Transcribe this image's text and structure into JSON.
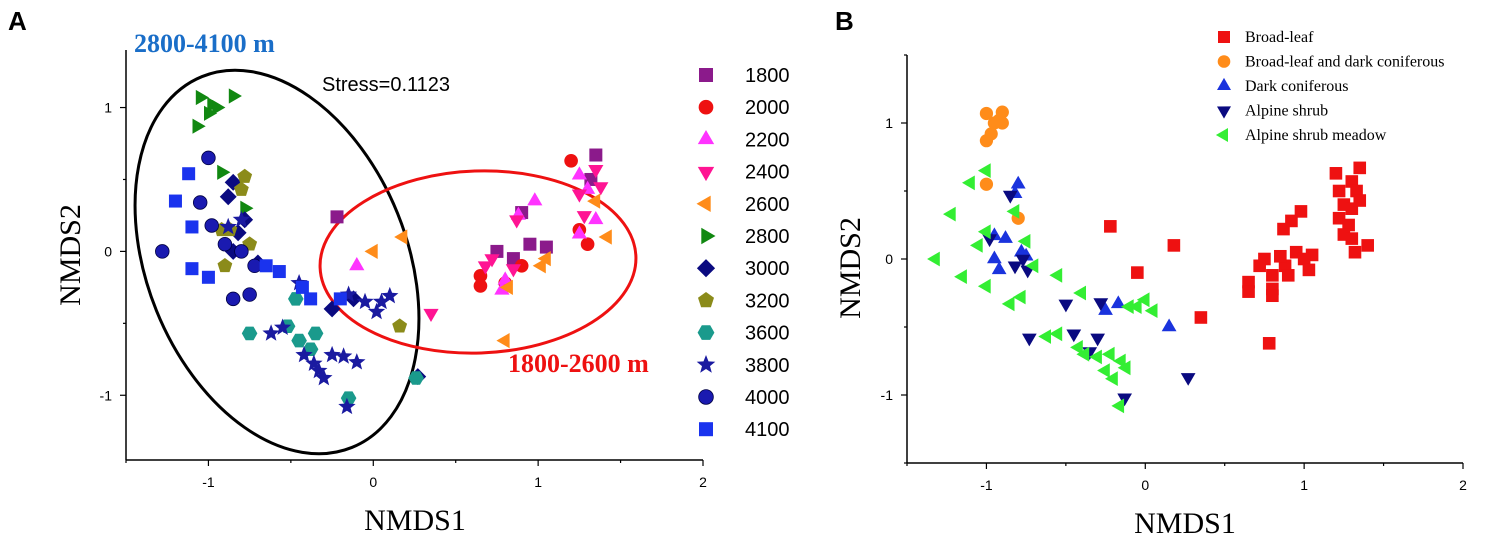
{
  "colors": {
    "1800": "#8b1a8b",
    "2000": "#ee1111",
    "2200": "#ff33ff",
    "2400": "#ff1493",
    "2600": "#ff8c1a",
    "2800": "#118811",
    "3000": "#0a0a80",
    "3200": "#8b8b1a",
    "3600": "#1a9a8c",
    "3800": "#1a1aa0",
    "4000": "#1a1ab0",
    "4100": "#1a33ee",
    "broad": "#ee1111",
    "broaddark": "#ff8c1a",
    "dark": "#1a33dd",
    "alpine": "#0a0a80",
    "meadow": "#33ee33",
    "ann_blue": "#1a6ec8",
    "ann_red": "#ee1111"
  },
  "chart_data": [
    {
      "panel": "A",
      "type": "scatter",
      "xlabel": "NMDS1",
      "ylabel": "NMDS2",
      "xlim": [
        -1.5,
        2.0
      ],
      "ylim": [
        -1.45,
        1.4
      ],
      "xticks": [
        -1,
        0,
        1,
        2
      ],
      "yticks": [
        -1,
        0,
        1
      ],
      "annotations": {
        "stress": "Stress=0.1123",
        "upper": "2800-4100 m",
        "lower": "1800-2600 m"
      },
      "series": [
        {
          "name": "1800",
          "marker": "square",
          "points": [
            [
              1.35,
              0.67
            ],
            [
              1.32,
              0.5
            ],
            [
              0.9,
              0.27
            ],
            [
              0.95,
              0.05
            ],
            [
              1.05,
              0.03
            ],
            [
              0.75,
              0.0
            ],
            [
              0.85,
              -0.05
            ],
            [
              -0.22,
              0.24
            ]
          ]
        },
        {
          "name": "2000",
          "marker": "circle",
          "points": [
            [
              1.2,
              0.63
            ],
            [
              1.25,
              0.15
            ],
            [
              1.3,
              0.05
            ],
            [
              0.65,
              -0.17
            ],
            [
              0.65,
              -0.24
            ],
            [
              0.8,
              -0.22
            ],
            [
              0.9,
              -0.1
            ]
          ]
        },
        {
          "name": "2200",
          "marker": "triangle-up",
          "points": [
            [
              1.25,
              0.53
            ],
            [
              1.3,
              0.43
            ],
            [
              0.98,
              0.35
            ],
            [
              0.88,
              0.25
            ],
            [
              1.25,
              0.12
            ],
            [
              1.35,
              0.22
            ],
            [
              0.8,
              -0.2
            ],
            [
              0.78,
              -0.27
            ],
            [
              -0.1,
              -0.1
            ]
          ]
        },
        {
          "name": "2400",
          "marker": "triangle-down",
          "points": [
            [
              1.35,
              0.57
            ],
            [
              1.38,
              0.45
            ],
            [
              1.25,
              0.4
            ],
            [
              1.28,
              0.25
            ],
            [
              0.87,
              0.22
            ],
            [
              0.72,
              -0.05
            ],
            [
              0.68,
              -0.1
            ],
            [
              0.85,
              -0.12
            ],
            [
              0.35,
              -0.43
            ]
          ]
        },
        {
          "name": "2600",
          "marker": "triangle-left",
          "points": [
            [
              1.35,
              0.35
            ],
            [
              1.42,
              0.1
            ],
            [
              1.05,
              -0.05
            ],
            [
              1.02,
              -0.1
            ],
            [
              0.82,
              -0.25
            ],
            [
              0.8,
              -0.62
            ],
            [
              0.18,
              0.1
            ],
            [
              0.0,
              0.0
            ]
          ]
        },
        {
          "name": "2800",
          "marker": "triangle-right",
          "points": [
            [
              -1.05,
              1.07
            ],
            [
              -0.98,
              1.02
            ],
            [
              -0.95,
              1.0
            ],
            [
              -1.0,
              0.96
            ],
            [
              -0.85,
              1.08
            ],
            [
              -1.07,
              0.87
            ],
            [
              -0.92,
              0.55
            ],
            [
              -0.78,
              0.3
            ]
          ]
        },
        {
          "name": "3000",
          "marker": "diamond",
          "points": [
            [
              -0.85,
              0.48
            ],
            [
              -0.88,
              0.38
            ],
            [
              -0.78,
              0.22
            ],
            [
              -0.82,
              0.13
            ],
            [
              -0.85,
              0.0
            ],
            [
              -0.7,
              -0.08
            ],
            [
              -0.25,
              -0.4
            ],
            [
              -0.12,
              -0.33
            ],
            [
              0.27,
              -0.87
            ]
          ]
        },
        {
          "name": "3200",
          "marker": "pentagon",
          "points": [
            [
              -0.78,
              0.52
            ],
            [
              -0.8,
              0.43
            ],
            [
              -0.92,
              0.15
            ],
            [
              -0.87,
              0.15
            ],
            [
              -0.75,
              0.05
            ],
            [
              -0.9,
              -0.1
            ],
            [
              0.16,
              -0.52
            ]
          ]
        },
        {
          "name": "3600",
          "marker": "hexagon",
          "points": [
            [
              -0.75,
              -0.57
            ],
            [
              -0.52,
              -0.52
            ],
            [
              -0.45,
              -0.62
            ],
            [
              -0.38,
              -0.68
            ],
            [
              -0.47,
              -0.33
            ],
            [
              -0.35,
              -0.57
            ],
            [
              -0.15,
              -1.02
            ],
            [
              0.26,
              -0.88
            ]
          ]
        },
        {
          "name": "3800",
          "marker": "star",
          "points": [
            [
              -0.88,
              0.17
            ],
            [
              -0.8,
              0.22
            ],
            [
              -0.45,
              -0.22
            ],
            [
              -0.62,
              -0.57
            ],
            [
              -0.55,
              -0.53
            ],
            [
              -0.42,
              -0.72
            ],
            [
              -0.36,
              -0.78
            ],
            [
              -0.33,
              -0.83
            ],
            [
              -0.3,
              -0.88
            ],
            [
              -0.25,
              -0.72
            ],
            [
              -0.18,
              -0.73
            ],
            [
              -0.1,
              -0.77
            ],
            [
              -0.15,
              -0.3
            ],
            [
              -0.05,
              -0.35
            ],
            [
              0.02,
              -0.42
            ],
            [
              0.05,
              -0.35
            ],
            [
              0.1,
              -0.31
            ],
            [
              -0.16,
              -1.08
            ]
          ]
        },
        {
          "name": "4000",
          "marker": "sphere",
          "points": [
            [
              -1.28,
              0.0
            ],
            [
              -1.0,
              0.65
            ],
            [
              -1.05,
              0.34
            ],
            [
              -0.98,
              0.18
            ],
            [
              -0.9,
              0.05
            ],
            [
              -0.8,
              0.0
            ],
            [
              -0.72,
              -0.1
            ],
            [
              -0.85,
              -0.33
            ],
            [
              -0.75,
              -0.3
            ]
          ]
        },
        {
          "name": "4100",
          "marker": "square",
          "points": [
            [
              -1.12,
              0.54
            ],
            [
              -1.2,
              0.35
            ],
            [
              -1.1,
              0.17
            ],
            [
              -1.1,
              -0.12
            ],
            [
              -1.0,
              -0.18
            ],
            [
              -0.57,
              -0.14
            ],
            [
              -0.43,
              -0.25
            ],
            [
              -0.38,
              -0.33
            ],
            [
              -0.2,
              -0.33
            ],
            [
              -0.65,
              -0.1
            ]
          ]
        }
      ]
    },
    {
      "panel": "B",
      "type": "scatter",
      "xlabel": "NMDS1",
      "ylabel": "NMDS2",
      "xlim": [
        -1.5,
        2.0
      ],
      "ylim": [
        -1.5,
        1.5
      ],
      "xticks": [
        -1,
        0,
        1,
        2
      ],
      "yticks": [
        -1,
        0,
        1
      ],
      "series": [
        {
          "name": "Broad-leaf",
          "marker": "square",
          "points": [
            [
              1.35,
              0.67
            ],
            [
              1.3,
              0.57
            ],
            [
              1.33,
              0.5
            ],
            [
              1.2,
              0.63
            ],
            [
              1.22,
              0.5
            ],
            [
              1.25,
              0.4
            ],
            [
              1.3,
              0.37
            ],
            [
              1.35,
              0.43
            ],
            [
              1.22,
              0.3
            ],
            [
              1.28,
              0.25
            ],
            [
              1.25,
              0.18
            ],
            [
              1.3,
              0.15
            ],
            [
              1.4,
              0.1
            ],
            [
              1.32,
              0.05
            ],
            [
              0.98,
              0.35
            ],
            [
              0.92,
              0.28
            ],
            [
              0.87,
              0.22
            ],
            [
              0.95,
              0.05
            ],
            [
              1.05,
              0.03
            ],
            [
              1.0,
              0.0
            ],
            [
              1.03,
              -0.08
            ],
            [
              0.88,
              -0.05
            ],
            [
              0.85,
              0.02
            ],
            [
              0.75,
              0.0
            ],
            [
              0.72,
              -0.05
            ],
            [
              0.8,
              -0.12
            ],
            [
              0.9,
              -0.12
            ],
            [
              0.65,
              -0.17
            ],
            [
              0.65,
              -0.24
            ],
            [
              0.8,
              -0.22
            ],
            [
              0.8,
              -0.27
            ],
            [
              0.78,
              -0.62
            ],
            [
              0.35,
              -0.43
            ],
            [
              0.18,
              0.1
            ],
            [
              -0.05,
              -0.1
            ],
            [
              -0.22,
              0.24
            ]
          ]
        },
        {
          "name": "Broad-leaf and dark coniferous",
          "marker": "circle",
          "points": [
            [
              -1.0,
              1.07
            ],
            [
              -0.9,
              1.08
            ],
            [
              -0.95,
              1.0
            ],
            [
              -0.9,
              1.0
            ],
            [
              -0.92,
              1.02
            ],
            [
              -0.97,
              0.92
            ],
            [
              -1.0,
              0.87
            ],
            [
              -1.0,
              0.55
            ],
            [
              -0.8,
              0.3
            ]
          ]
        },
        {
          "name": "Dark coniferous",
          "marker": "triangle-up",
          "points": [
            [
              -0.8,
              0.55
            ],
            [
              -0.82,
              0.48
            ],
            [
              -0.95,
              0.17
            ],
            [
              -0.88,
              0.15
            ],
            [
              -0.78,
              0.05
            ],
            [
              -0.92,
              -0.08
            ],
            [
              -0.75,
              0.02
            ],
            [
              -0.17,
              -0.33
            ],
            [
              0.15,
              -0.5
            ],
            [
              -0.25,
              -0.38
            ],
            [
              -0.95,
              0.0
            ]
          ]
        },
        {
          "name": "Alpine shrub",
          "marker": "triangle-down",
          "points": [
            [
              -0.85,
              0.47
            ],
            [
              -0.98,
              0.15
            ],
            [
              -0.77,
              0.0
            ],
            [
              -0.82,
              -0.05
            ],
            [
              -0.74,
              -0.08
            ],
            [
              -0.5,
              -0.33
            ],
            [
              -0.45,
              -0.55
            ],
            [
              -0.3,
              -0.58
            ],
            [
              -0.35,
              -0.68
            ],
            [
              -0.73,
              -0.58
            ],
            [
              -0.13,
              -1.02
            ],
            [
              0.27,
              -0.87
            ],
            [
              -0.28,
              -0.32
            ]
          ]
        },
        {
          "name": "Alpine shrub meadow",
          "marker": "triangle-left",
          "points": [
            [
              -1.32,
              0.0
            ],
            [
              -1.22,
              0.33
            ],
            [
              -1.1,
              0.56
            ],
            [
              -1.0,
              0.65
            ],
            [
              -1.0,
              0.2
            ],
            [
              -1.05,
              0.1
            ],
            [
              -1.15,
              -0.13
            ],
            [
              -1.0,
              -0.2
            ],
            [
              -0.85,
              -0.33
            ],
            [
              -0.78,
              -0.28
            ],
            [
              -0.7,
              -0.05
            ],
            [
              -0.75,
              0.13
            ],
            [
              -0.82,
              0.35
            ],
            [
              -0.62,
              -0.57
            ],
            [
              -0.55,
              -0.55
            ],
            [
              -0.42,
              -0.65
            ],
            [
              -0.38,
              -0.7
            ],
            [
              -0.3,
              -0.72
            ],
            [
              -0.22,
              -0.7
            ],
            [
              -0.25,
              -0.82
            ],
            [
              -0.2,
              -0.88
            ],
            [
              -0.15,
              -0.75
            ],
            [
              -0.12,
              -0.8
            ],
            [
              -0.16,
              -1.08
            ],
            [
              -0.1,
              -0.35
            ],
            [
              0.0,
              -0.3
            ],
            [
              0.05,
              -0.38
            ],
            [
              -0.05,
              -0.35
            ],
            [
              -0.4,
              -0.25
            ],
            [
              -0.55,
              -0.12
            ]
          ]
        }
      ]
    }
  ]
}
